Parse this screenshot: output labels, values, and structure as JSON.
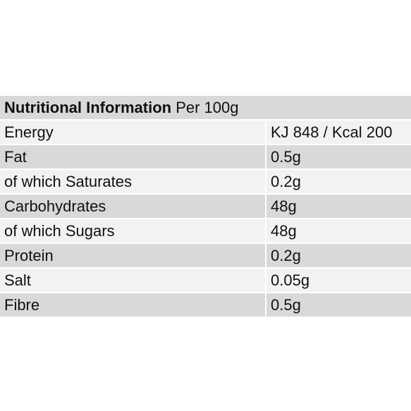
{
  "table": {
    "title_bold": "Nutritional Information",
    "title_rest": " Per 100g",
    "rows": [
      {
        "name": "Energy",
        "value": "KJ 848 / Kcal 200"
      },
      {
        "name": "Fat",
        "value": "0.5g"
      },
      {
        "name": "of which Saturates",
        "value": "0.2g"
      },
      {
        "name": "Carbohydrates",
        "value": "48g"
      },
      {
        "name": "of which Sugars",
        "value": "48g"
      },
      {
        "name": "Protein",
        "value": "0.2g"
      },
      {
        "name": "Salt",
        "value": "0.05g"
      },
      {
        "name": "Fibre",
        "value": "0.5g"
      }
    ]
  },
  "colors": {
    "band_dark": "#d9d9d9",
    "band_light": "#f2f2f2",
    "text": "#111111"
  }
}
